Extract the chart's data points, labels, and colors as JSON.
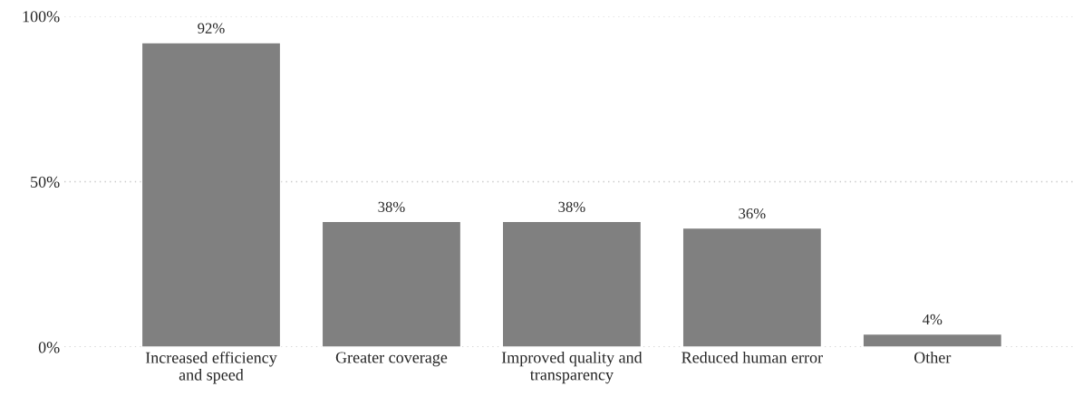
{
  "chart_data": {
    "type": "bar",
    "categories": [
      "Increased efficiency\nand speed",
      "Greater coverage",
      "Improved quality and\ntransparency",
      "Reduced human error",
      "Other"
    ],
    "values": [
      92,
      38,
      38,
      36,
      4
    ],
    "value_labels": [
      "92%",
      "38%",
      "38%",
      "36%",
      "4%"
    ],
    "color": "#808080",
    "ylim": [
      0,
      100
    ],
    "yticks": [
      {
        "value": 0,
        "label": "0%"
      },
      {
        "value": 50,
        "label": "50%"
      },
      {
        "value": 100,
        "label": "100%"
      }
    ],
    "grid": "y"
  }
}
